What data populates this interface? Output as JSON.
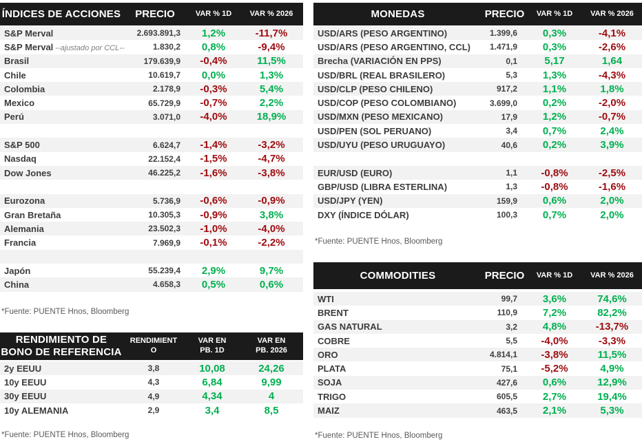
{
  "colors": {
    "positive": "#00B050",
    "negative": "#9E0B0F",
    "header_bg": "#1B1B1B",
    "stripe": "#F2F2F2"
  },
  "tables": {
    "indices": {
      "title": "ÍNDICES DE ACCIONES",
      "columns": [
        "PRECIO",
        "VAR % 1D",
        "VAR % 2026"
      ],
      "rows": [
        {
          "name": "S&P Merval",
          "price": "2.693.891,3",
          "var_1d": "1,2%",
          "var_1d_color": "green",
          "var_2026": "-11,7%",
          "var_2026_color": "red"
        },
        {
          "name": "S&P Merval",
          "note": "--ajustado por CCL--",
          "price": "1.830,2",
          "var_1d": "0,8%",
          "var_1d_color": "green",
          "var_2026": "-9,4%",
          "var_2026_color": "red"
        },
        {
          "name": "Brasil",
          "price": "179.639,9",
          "var_1d": "-0,4%",
          "var_1d_color": "red",
          "var_2026": "11,5%",
          "var_2026_color": "green"
        },
        {
          "name": "Chile",
          "price": "10.619,7",
          "var_1d": "0,0%",
          "var_1d_color": "green",
          "var_2026": "1,3%",
          "var_2026_color": "green"
        },
        {
          "name": "Colombia",
          "price": "2.178,9",
          "var_1d": "-0,3%",
          "var_1d_color": "red",
          "var_2026": "5,4%",
          "var_2026_color": "green"
        },
        {
          "name": "Mexico",
          "price": "65.729,9",
          "var_1d": "-0,7%",
          "var_1d_color": "red",
          "var_2026": "2,2%",
          "var_2026_color": "green"
        },
        {
          "name": "Perú",
          "price": "3.071,0",
          "var_1d": "-4,0%",
          "var_1d_color": "red",
          "var_2026": "18,9%",
          "var_2026_color": "green"
        },
        {
          "blank": true
        },
        {
          "name": "S&P 500",
          "price": "6.624,7",
          "var_1d": "-1,4%",
          "var_1d_color": "red",
          "var_2026": "-3,2%",
          "var_2026_color": "red"
        },
        {
          "name": "Nasdaq",
          "price": "22.152,4",
          "var_1d": "-1,5%",
          "var_1d_color": "red",
          "var_2026": "-4,7%",
          "var_2026_color": "red"
        },
        {
          "name": "Dow Jones",
          "price": "46.225,2",
          "var_1d": "-1,6%",
          "var_1d_color": "red",
          "var_2026": "-3,8%",
          "var_2026_color": "red"
        },
        {
          "blank": true
        },
        {
          "name": "Eurozona",
          "price": "5.736,9",
          "var_1d": "-0,6%",
          "var_1d_color": "red",
          "var_2026": "-0,9%",
          "var_2026_color": "red"
        },
        {
          "name": "Gran Bretaña",
          "price": "10.305,3",
          "var_1d": "-0,9%",
          "var_1d_color": "red",
          "var_2026": "3,8%",
          "var_2026_color": "green"
        },
        {
          "name": "Alemania",
          "price": "23.502,3",
          "var_1d": "-1,0%",
          "var_1d_color": "red",
          "var_2026": "-4,0%",
          "var_2026_color": "red"
        },
        {
          "name": "Francia",
          "price": "7.969,9",
          "var_1d": "-0,1%",
          "var_1d_color": "red",
          "var_2026": "-2,2%",
          "var_2026_color": "red"
        },
        {
          "blank": true
        },
        {
          "name": "Japón",
          "price": "55.239,4",
          "var_1d": "2,9%",
          "var_1d_color": "green",
          "var_2026": "9,7%",
          "var_2026_color": "green"
        },
        {
          "name": "China",
          "price": "4.658,3",
          "var_1d": "0,5%",
          "var_1d_color": "green",
          "var_2026": "0,6%",
          "var_2026_color": "green"
        }
      ],
      "source": "*Fuente: PUENTE Hnos, Bloomberg"
    },
    "monedas": {
      "title": "MONEDAS",
      "columns": [
        "PRECIO",
        "VAR % 1D",
        "VAR % 2026"
      ],
      "rows": [
        {
          "name": "USD/ARS (PESO ARGENTINO)",
          "price": "1.399,6",
          "var_1d": "0,3%",
          "var_1d_color": "green",
          "var_2026": "-4,1%",
          "var_2026_color": "red"
        },
        {
          "name": "USD/ARS (PESO ARGENTINO, CCL)",
          "price": "1.471,9",
          "var_1d": "0,3%",
          "var_1d_color": "green",
          "var_2026": "-2,6%",
          "var_2026_color": "red"
        },
        {
          "name": "Brecha (VARIACIÓN EN PPS)",
          "price": "0,1",
          "var_1d": "5,17",
          "var_1d_color": "green",
          "var_2026": "1,64",
          "var_2026_color": "green"
        },
        {
          "name": "USD/BRL (REAL BRASILERO)",
          "price": "5,3",
          "var_1d": "1,3%",
          "var_1d_color": "green",
          "var_2026": "-4,3%",
          "var_2026_color": "red"
        },
        {
          "name": "USD/CLP (PESO CHILENO)",
          "price": "917,2",
          "var_1d": "1,1%",
          "var_1d_color": "green",
          "var_2026": "1,8%",
          "var_2026_color": "green"
        },
        {
          "name": "USD/COP (PESO COLOMBIANO)",
          "price": "3.699,0",
          "var_1d": "0,2%",
          "var_1d_color": "green",
          "var_2026": "-2,0%",
          "var_2026_color": "red"
        },
        {
          "name": "USD/MXN (PESO MEXICANO)",
          "price": "17,9",
          "var_1d": "1,2%",
          "var_1d_color": "green",
          "var_2026": "-0,7%",
          "var_2026_color": "red"
        },
        {
          "name": "USD/PEN (SOL PERUANO)",
          "price": "3,4",
          "var_1d": "0,7%",
          "var_1d_color": "green",
          "var_2026": "2,4%",
          "var_2026_color": "green"
        },
        {
          "name": "USD/UYU (PESO URUGUAYO)",
          "price": "40,6",
          "var_1d": "0,2%",
          "var_1d_color": "green",
          "var_2026": "3,9%",
          "var_2026_color": "green"
        },
        {
          "blank": true
        },
        {
          "name": "EUR/USD (EURO)",
          "price": "1,1",
          "var_1d": "-0,8%",
          "var_1d_color": "red",
          "var_2026": "-2,5%",
          "var_2026_color": "red"
        },
        {
          "name": "GBP/USD (LIBRA ESTERLINA)",
          "price": "1,3",
          "var_1d": "-0,8%",
          "var_1d_color": "red",
          "var_2026": "-1,6%",
          "var_2026_color": "red"
        },
        {
          "name": "USD/JPY (YEN)",
          "price": "159,9",
          "var_1d": "0,6%",
          "var_1d_color": "green",
          "var_2026": "2,0%",
          "var_2026_color": "green"
        },
        {
          "name": "DXY (ÍNDICE DÓLAR)",
          "price": "100,3",
          "var_1d": "0,7%",
          "var_1d_color": "green",
          "var_2026": "2,0%",
          "var_2026_color": "green"
        }
      ],
      "source": "*Fuente: PUENTE Hnos, Bloomberg"
    },
    "bonos": {
      "title": "RENDIMIENTO DE\nBONO DE REFERENCIA",
      "columns": [
        "RENDIMIENT\nO",
        "VAR EN\nPB. 1D",
        "VAR EN\nPB. 2026"
      ],
      "rows": [
        {
          "name": "2y EEUU",
          "price": "3,8",
          "var_1d": "10,08",
          "var_1d_color": "green",
          "var_2026": "24,26",
          "var_2026_color": "green"
        },
        {
          "name": "10y EEUU",
          "price": "4,3",
          "var_1d": "6,84",
          "var_1d_color": "green",
          "var_2026": "9,99",
          "var_2026_color": "green"
        },
        {
          "name": "30y EEUU",
          "price": "4,9",
          "var_1d": "4,34",
          "var_1d_color": "green",
          "var_2026": "4",
          "var_2026_color": "green"
        },
        {
          "name": "10y ALEMANIA",
          "price": "2,9",
          "var_1d": "3,4",
          "var_1d_color": "green",
          "var_2026": "8,5",
          "var_2026_color": "green"
        }
      ],
      "source": "*Fuente: PUENTE Hnos, Bloomberg"
    },
    "commodities": {
      "title": "COMMODITIES",
      "columns": [
        "PRECIO",
        "VAR % 1D",
        "VAR % 2026"
      ],
      "rows": [
        {
          "name": "WTI",
          "price": "99,7",
          "var_1d": "3,6%",
          "var_1d_color": "green",
          "var_2026": "74,6%",
          "var_2026_color": "green"
        },
        {
          "name": "BRENT",
          "price": "110,9",
          "var_1d": "7,2%",
          "var_1d_color": "green",
          "var_2026": "82,2%",
          "var_2026_color": "green"
        },
        {
          "name": "GAS NATURAL",
          "price": "3,2",
          "var_1d": "4,8%",
          "var_1d_color": "green",
          "var_2026": "-13,7%",
          "var_2026_color": "red"
        },
        {
          "name": "COBRE",
          "price": "5,5",
          "var_1d": "-4,0%",
          "var_1d_color": "red",
          "var_2026": "-3,3%",
          "var_2026_color": "red"
        },
        {
          "name": "ORO",
          "price": "4.814,1",
          "var_1d": "-3,8%",
          "var_1d_color": "red",
          "var_2026": "11,5%",
          "var_2026_color": "green"
        },
        {
          "name": "PLATA",
          "price": "75,1",
          "var_1d": "-5,2%",
          "var_1d_color": "red",
          "var_2026": "4,9%",
          "var_2026_color": "green"
        },
        {
          "name": "SOJA",
          "price": "427,6",
          "var_1d": "0,6%",
          "var_1d_color": "green",
          "var_2026": "12,9%",
          "var_2026_color": "green"
        },
        {
          "name": "TRIGO",
          "price": "605,5",
          "var_1d": "2,7%",
          "var_1d_color": "green",
          "var_2026": "19,4%",
          "var_2026_color": "green"
        },
        {
          "name": "MAIZ",
          "price": "463,5",
          "var_1d": "2,1%",
          "var_1d_color": "green",
          "var_2026": "5,3%",
          "var_2026_color": "green"
        }
      ],
      "source": "*Fuente: PUENTE Hnos, Bloomberg"
    }
  }
}
